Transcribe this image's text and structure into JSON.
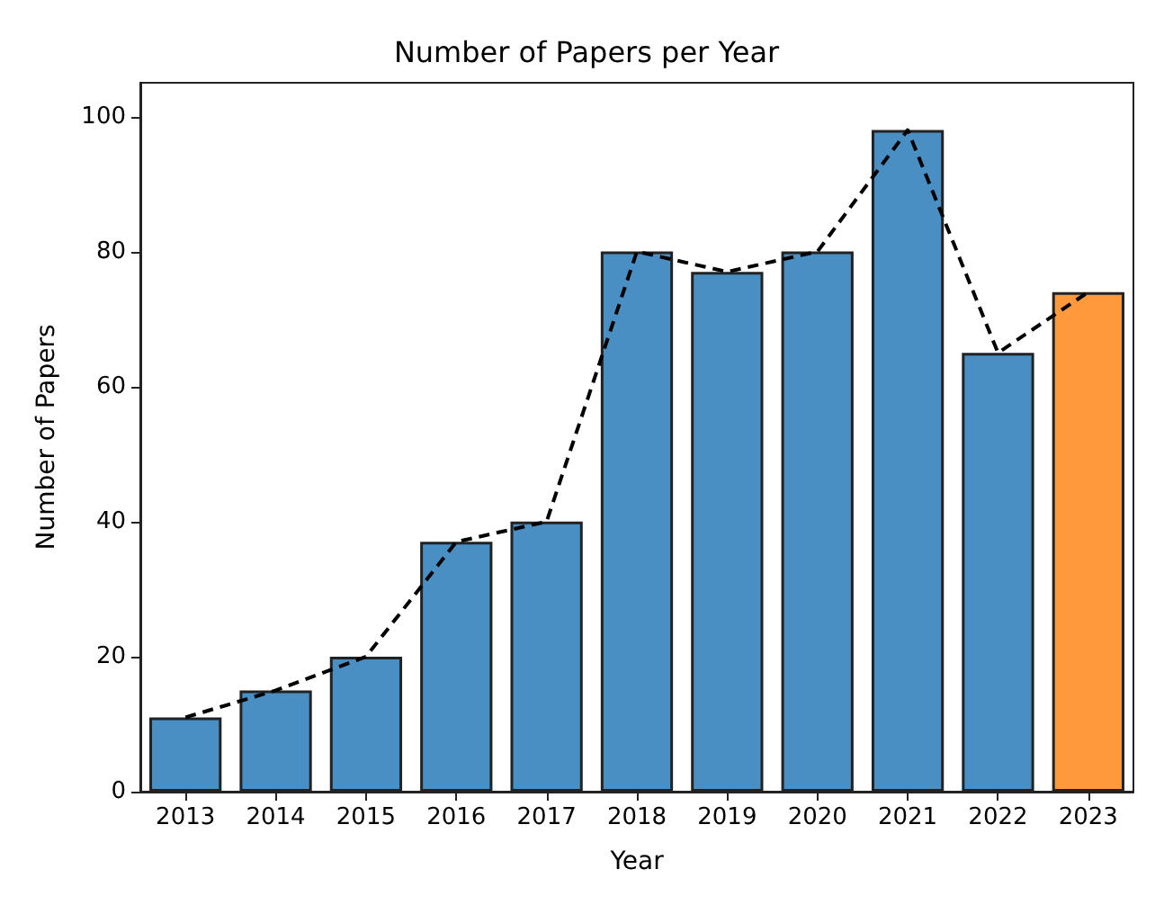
{
  "chart_data": {
    "type": "bar",
    "title": "Number of Papers per Year",
    "xlabel": "Year",
    "ylabel": "Number of Papers",
    "categories": [
      "2013",
      "2014",
      "2015",
      "2016",
      "2017",
      "2018",
      "2019",
      "2020",
      "2021",
      "2022",
      "2023"
    ],
    "series": [
      {
        "colors": [
          "#4a8fc4",
          "#4a8fc4",
          "#4a8fc4",
          "#4a8fc4",
          "#4a8fc4",
          "#4a8fc4",
          "#4a8fc4",
          "#4a8fc4",
          "#4a8fc4",
          "#4a8fc4",
          "#ff993c"
        ],
        "values": [
          11,
          15,
          20,
          37,
          40,
          80,
          77,
          80,
          98,
          65,
          74
        ]
      },
      {
        "type": "line",
        "color": "#000000",
        "line_style": "dashed",
        "marker": "none",
        "values": [
          11,
          15,
          20,
          37,
          40,
          80,
          77,
          80,
          98,
          65,
          74
        ]
      }
    ],
    "ylim": [
      0,
      105
    ],
    "yticks": [
      0,
      20,
      40,
      60,
      80,
      100
    ],
    "grid": false
  }
}
